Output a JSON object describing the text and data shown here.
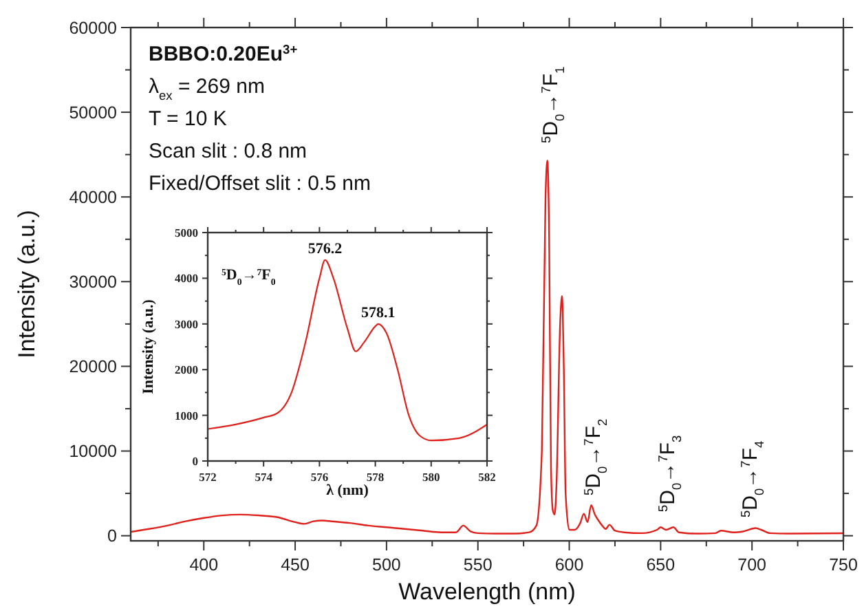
{
  "chart_data": [
    {
      "type": "line",
      "xlabel": "Wavelength (nm)",
      "ylabel": "Intensity (a.u.)",
      "xlim": [
        360,
        750
      ],
      "ylim": [
        -600,
        60000
      ],
      "xticks": [
        400,
        450,
        500,
        550,
        600,
        650,
        700,
        750,
        {
          "value": 375,
          "label": null
        },
        {
          "value": 425,
          "label": null
        },
        {
          "value": 475,
          "label": null
        },
        {
          "value": 525,
          "label": null
        },
        {
          "value": 575,
          "label": null
        },
        {
          "value": 625,
          "label": null
        },
        {
          "value": 675,
          "label": null
        },
        {
          "value": 725,
          "label": null
        }
      ],
      "yticks": [
        0,
        10000,
        20000,
        30000,
        40000,
        50000,
        60000,
        {
          "value": 5000,
          "label": null
        },
        {
          "value": 15000,
          "label": null
        },
        {
          "value": 25000,
          "label": null
        },
        {
          "value": 35000,
          "label": null
        },
        {
          "value": 45000,
          "label": null
        },
        {
          "value": 55000,
          "label": null
        }
      ],
      "x": [
        360,
        370,
        380,
        390,
        400,
        410,
        420,
        430,
        440,
        450,
        455,
        460,
        465,
        470,
        480,
        490,
        500,
        510,
        520,
        530,
        538,
        542,
        546,
        550,
        560,
        570,
        578,
        582,
        585,
        587,
        588,
        589,
        590,
        591,
        592,
        593,
        595,
        596,
        597,
        598,
        600,
        603,
        606,
        608,
        610,
        612,
        614,
        616,
        618,
        620,
        622,
        625,
        630,
        640,
        648,
        650,
        653,
        657,
        660,
        670,
        680,
        683,
        690,
        695,
        702,
        705,
        710,
        720,
        750
      ],
      "series": [
        {
          "color": "#e0201b",
          "values": [
            450,
            800,
            1200,
            1700,
            2100,
            2400,
            2500,
            2400,
            2200,
            1600,
            1400,
            1700,
            1800,
            1700,
            1500,
            1200,
            1000,
            800,
            600,
            400,
            400,
            1200,
            500,
            300,
            250,
            250,
            400,
            1200,
            10000,
            40000,
            44300,
            35000,
            8000,
            3000,
            2500,
            6000,
            25000,
            28300,
            20000,
            5000,
            700,
            700,
            1500,
            2600,
            1600,
            3600,
            2500,
            1800,
            1200,
            800,
            1300,
            600,
            400,
            300,
            700,
            1000,
            700,
            1000,
            400,
            250,
            300,
            600,
            400,
            500,
            900,
            700,
            300,
            250,
            300
          ]
        }
      ],
      "annotations": [
        "BBBO:0.20Eu$^{3+}$",
        "λ$_{ex}$ = 269 nm",
        "T = 10 K",
        "Scan slit : 0.8 nm",
        "Fixed/Offset slit : 0.5 nm",
        "$^{5}$D$_{0}$→$^{7}$F$_{1}$",
        "$^{5}$D$_{0}$→$^{7}$F$_{2}$",
        "$^{5}$D$_{0}$→$^{7}$F$_{3}$",
        "$^{5}$D$_{0}$→$^{7}$F$_{4}$"
      ]
    },
    {
      "type": "line",
      "xlabel": "λ (nm)",
      "ylabel": "Intensity (a.u.)",
      "xlim": [
        572,
        582
      ],
      "ylim": [
        0,
        5000
      ],
      "xticks": [
        572,
        574,
        576,
        578,
        580,
        582,
        {
          "value": 573,
          "label": null
        },
        {
          "value": 575,
          "label": null
        },
        {
          "value": 577,
          "label": null
        },
        {
          "value": 579,
          "label": null
        },
        {
          "value": 581,
          "label": null
        }
      ],
      "yticks": [
        0,
        1000,
        2000,
        3000,
        4000,
        5000,
        {
          "value": 500,
          "label": null
        },
        {
          "value": 1500,
          "label": null
        },
        {
          "value": 2500,
          "label": null
        },
        {
          "value": 3500,
          "label": null
        },
        {
          "value": 4500,
          "label": null
        }
      ],
      "x": [
        572,
        573,
        574,
        574.5,
        575,
        575.5,
        576,
        576.2,
        576.5,
        577,
        577.3,
        577.6,
        578,
        578.1,
        578.4,
        578.8,
        579.2,
        579.6,
        580,
        581,
        582
      ],
      "series": [
        {
          "color": "#e0201b",
          "values": [
            700,
            800,
            950,
            1050,
            1500,
            2600,
            4000,
            4400,
            4000,
            2900,
            2400,
            2600,
            2950,
            3000,
            2800,
            2000,
            1000,
            550,
            450,
            500,
            800
          ]
        }
      ],
      "annotations": [
        "$^{5}$D$_{0}$→$^{7}$F$_{0}$",
        {
          "text": "576.2",
          "x": 576.2,
          "y": 4400
        },
        {
          "text": "578.1",
          "x": 578.1,
          "y": 3000
        }
      ]
    }
  ]
}
